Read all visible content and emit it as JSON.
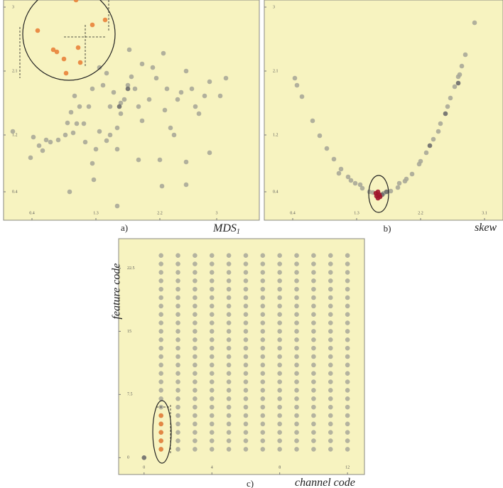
{
  "chart_data": [
    {
      "type": "scatter",
      "caption": "a)",
      "xlabel": "MDS",
      "xlabel_sub": "1",
      "xlim": [
        0,
        3.6
      ],
      "ylim": [
        0,
        3.1
      ],
      "xticks": [
        0.4,
        1.3,
        2.2,
        3.0
      ],
      "yticks": [
        0.4,
        1.2,
        2.1,
        3.0
      ],
      "series": [
        {
          "color": "#a9a898",
          "x": [
            0.42,
            0.5,
            0.6,
            0.38,
            0.55,
            0.66,
            0.77,
            0.87,
            0.9,
            0.98,
            1.03,
            1.13,
            1.15,
            1.25,
            1.3,
            1.35,
            1.45,
            1.5,
            1.6,
            1.65,
            1.7,
            1.75,
            1.8,
            1.65,
            1.5,
            1.4,
            1.35,
            1.25,
            1.2,
            1.07,
            0.95,
            1.0,
            1.45,
            1.55,
            1.85,
            1.9,
            1.95,
            2.05,
            2.1,
            2.15,
            2.25,
            2.27,
            2.3,
            2.35,
            2.4,
            2.45,
            2.5,
            2.57,
            2.65,
            2.7,
            2.75,
            2.83,
            2.9,
            3.05,
            3.13,
            2.9,
            2.57,
            2.57,
            2.23,
            2.2,
            1.9,
            1.6,
            1.27,
            0.93,
            1.6,
            1.95,
            1.77,
            0.13
          ],
          "y": [
            1.17,
            1.05,
            1.13,
            0.88,
            0.98,
            1.1,
            1.13,
            1.2,
            1.37,
            1.23,
            1.36,
            1.36,
            1.1,
            0.8,
            1.0,
            1.25,
            1.12,
            1.2,
            1.3,
            1.5,
            1.7,
            1.9,
            2.02,
            1.65,
            1.6,
            1.9,
            2.15,
            1.85,
            1.6,
            1.6,
            1.52,
            1.75,
            2.07,
            1.8,
            1.85,
            1.6,
            1.4,
            1.7,
            2.15,
            2.0,
            2.35,
            1.55,
            1.85,
            1.3,
            1.2,
            1.7,
            1.8,
            2.1,
            1.85,
            1.6,
            1.5,
            1.75,
            1.95,
            1.75,
            2.0,
            0.95,
            0.82,
            0.5,
            0.48,
            0.85,
            0.85,
            1.0,
            0.57,
            0.4,
            0.2,
            2.2,
            2.4,
            1.25
          ]
        },
        {
          "color": "#6b6b6b",
          "x": [
            1.63,
            1.75
          ],
          "y": [
            1.6,
            1.85
          ]
        },
        {
          "color": "#e8823a",
          "x": [
            1.02,
            0.48,
            0.7,
            0.75,
            0.85,
            0.88,
            1.05,
            1.08,
            1.25,
            1.43
          ],
          "y": [
            3.1,
            2.67,
            2.4,
            2.37,
            2.27,
            2.07,
            2.43,
            2.22,
            2.75,
            2.82
          ]
        }
      ]
    },
    {
      "type": "scatter",
      "caption": "b)",
      "xlabel": "skew",
      "xlim": [
        0,
        3.36
      ],
      "ylim": [
        0,
        3.1
      ],
      "xticks": [
        0.4,
        1.3,
        2.2,
        3.1
      ],
      "yticks": [
        0.4,
        1.2,
        2.1,
        3.0
      ],
      "series": [
        {
          "color": "#a9a898",
          "x": [
            0.43,
            0.53,
            0.68,
            0.78,
            0.88,
            0.98,
            1.08,
            1.18,
            1.28,
            1.38,
            1.48,
            1.53,
            1.68,
            1.78,
            1.88,
            1.98,
            2.08,
            2.18,
            2.28,
            2.38,
            2.48,
            2.58,
            2.68,
            2.73,
            2.78,
            2.83,
            2.96,
            1.05,
            1.35,
            1.6,
            2.0,
            2.2,
            2.45,
            2.62,
            2.75,
            0.46,
            1.22,
            1.9
          ],
          "y": [
            2.0,
            1.74,
            1.4,
            1.19,
            1.01,
            0.86,
            0.72,
            0.61,
            0.52,
            0.45,
            0.4,
            0.39,
            0.38,
            0.41,
            0.46,
            0.55,
            0.65,
            0.79,
            0.95,
            1.14,
            1.36,
            1.6,
            1.88,
            2.02,
            2.17,
            2.33,
            2.78,
            0.66,
            0.5,
            0.36,
            0.58,
            0.83,
            1.25,
            1.72,
            2.05,
            1.9,
            0.56,
            0.52
          ]
        },
        {
          "color": "#6b6b6b",
          "x": [
            2.33,
            2.55,
            2.73,
            1.72,
            1.66
          ],
          "y": [
            1.05,
            1.5,
            1.93,
            0.4,
            0.36
          ]
        },
        {
          "color": "#a0142a",
          "x": [
            1.6,
            1.62,
            1.58,
            1.6,
            1.63,
            1.57
          ],
          "y": [
            0.4,
            0.36,
            0.34,
            0.31,
            0.33,
            0.38
          ]
        }
      ]
    },
    {
      "type": "grid-scatter",
      "caption": "c)",
      "xlabel": "channel code",
      "ylabel": "feature code",
      "xlim": [
        -1.5,
        13
      ],
      "ylim": [
        -2,
        26
      ],
      "xticks": [
        0,
        4,
        8,
        12
      ],
      "yticks": [
        0,
        7.5,
        15,
        22.5
      ],
      "columns": [
        1,
        2,
        3,
        4,
        5,
        6,
        7,
        8,
        9,
        10,
        11,
        12
      ],
      "rows": [
        1,
        2,
        3,
        4,
        5,
        6,
        7,
        8,
        9,
        10,
        11,
        12,
        13,
        14,
        15,
        16,
        17,
        18,
        19,
        20,
        21,
        22,
        23,
        24
      ],
      "color": "#b4b39f",
      "series": [
        {
          "color": "#e8823a",
          "x": [
            1,
            1,
            1,
            1,
            1
          ],
          "y": [
            1,
            2,
            3,
            4,
            5
          ]
        },
        {
          "color": "#6b6b6b",
          "x": [
            0
          ],
          "y": [
            0
          ]
        }
      ]
    }
  ]
}
